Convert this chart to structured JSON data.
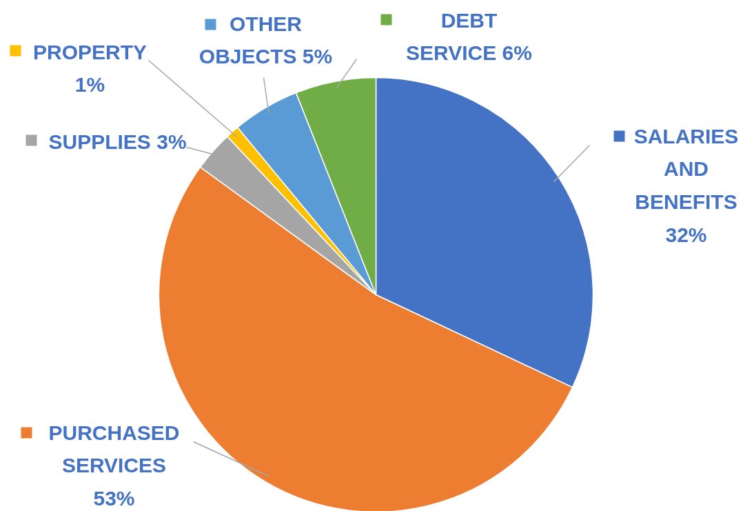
{
  "chart_data": {
    "type": "pie",
    "categories": [
      "SALARIES AND BENEFITS",
      "PURCHASED SERVICES",
      "SUPPLIES",
      "PROPERTY",
      "OTHER OBJECTS",
      "DEBT SERVICE"
    ],
    "values": [
      32,
      53,
      3,
      1,
      5,
      6
    ],
    "value_labels": [
      "32%",
      "53%",
      "3%",
      "1%",
      "5%",
      "6%"
    ],
    "colors": [
      "#4472c4",
      "#ed7d31",
      "#a5a5a5",
      "#ffc000",
      "#5b9bd5",
      "#70ad47"
    ],
    "legend": "top"
  }
}
